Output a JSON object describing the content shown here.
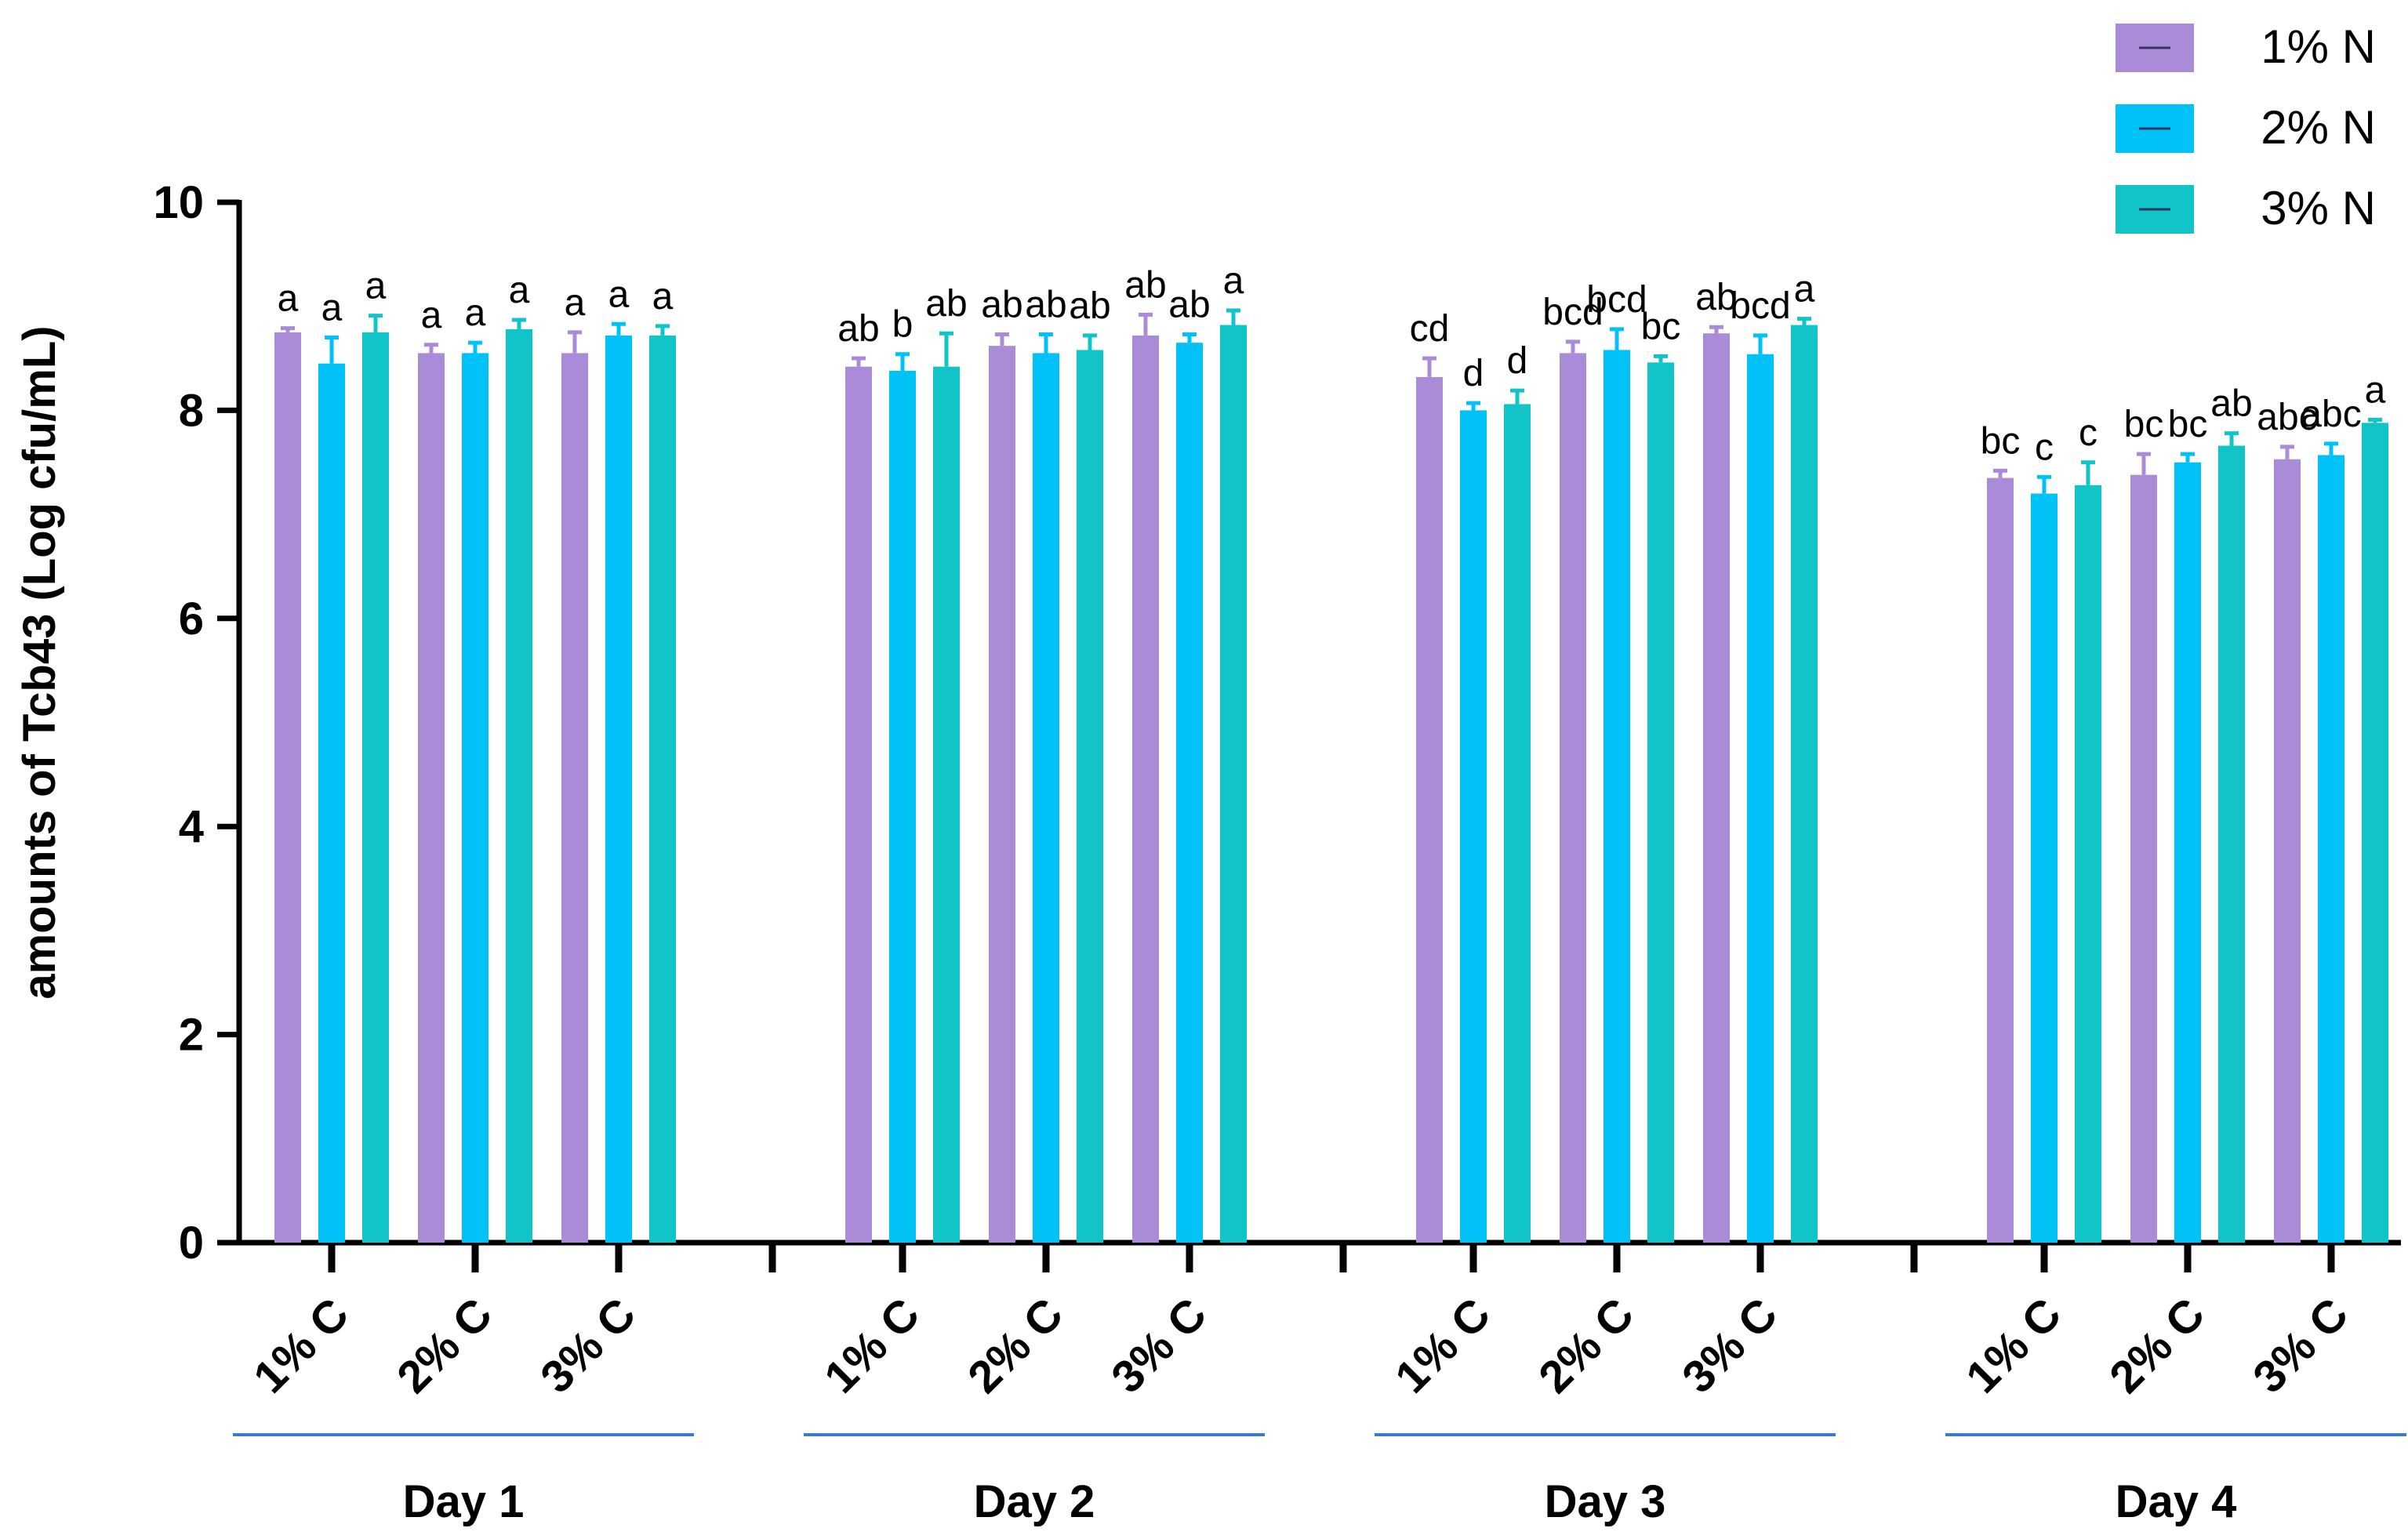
{
  "chart_data": {
    "type": "bar",
    "ylabel": "amounts of Tcb43 (Log cfu/mL)",
    "ylim": [
      0,
      10
    ],
    "yticks": [
      "0",
      "2",
      "4",
      "6",
      "8",
      "10"
    ],
    "grid": false,
    "legend_position": "top-right",
    "groups": [
      "Day 1",
      "Day 2",
      "Day 3",
      "Day 4"
    ],
    "subgroups": [
      "1% C",
      "2% C",
      "3% C"
    ],
    "series": [
      {
        "name": "1% N",
        "color": "#A98BD8"
      },
      {
        "name": "2% N",
        "color": "#00C2F7"
      },
      {
        "name": "3% N",
        "color": "#10C4C7"
      }
    ],
    "data": [
      [
        [
          8.75,
          8.45,
          8.75
        ],
        [
          8.55,
          8.55,
          8.78
        ],
        [
          8.55,
          8.72,
          8.72
        ]
      ],
      [
        [
          8.42,
          8.38,
          8.42
        ],
        [
          8.62,
          8.55,
          8.58
        ],
        [
          8.72,
          8.65,
          8.82
        ]
      ],
      [
        [
          8.32,
          8.0,
          8.06
        ],
        [
          8.55,
          8.58,
          8.46
        ],
        [
          8.74,
          8.54,
          8.82
        ]
      ],
      [
        [
          7.35,
          7.2,
          7.28
        ],
        [
          7.38,
          7.5,
          7.66
        ],
        [
          7.53,
          7.57,
          7.88
        ]
      ]
    ],
    "errors": [
      [
        [
          0.04,
          0.25,
          0.16
        ],
        [
          0.08,
          0.1,
          0.09
        ],
        [
          0.2,
          0.11,
          0.09
        ]
      ],
      [
        [
          0.08,
          0.16,
          0.32
        ],
        [
          0.11,
          0.18,
          0.14
        ],
        [
          0.2,
          0.08,
          0.14
        ]
      ],
      [
        [
          0.18,
          0.07,
          0.13
        ],
        [
          0.11,
          0.2,
          0.06
        ],
        [
          0.06,
          0.18,
          0.06
        ]
      ],
      [
        [
          0.07,
          0.16,
          0.22
        ],
        [
          0.2,
          0.08,
          0.12
        ],
        [
          0.12,
          0.11,
          0.03
        ]
      ]
    ],
    "letters": [
      [
        [
          "a",
          "a",
          "a"
        ],
        [
          "a",
          "a",
          "a"
        ],
        [
          "a",
          "a",
          "a"
        ]
      ],
      [
        [
          "ab",
          "b",
          "ab"
        ],
        [
          "ab",
          "ab",
          "ab"
        ],
        [
          "ab",
          "ab",
          "a"
        ]
      ],
      [
        [
          "cd",
          "d",
          "d"
        ],
        [
          "bcd",
          "bcd",
          "bc"
        ],
        [
          "ab",
          "bcd",
          "a"
        ]
      ],
      [
        [
          "bc",
          "c",
          "c"
        ],
        [
          "bc",
          "bc",
          "ab"
        ],
        [
          "abc",
          "abc",
          "a"
        ]
      ]
    ]
  }
}
